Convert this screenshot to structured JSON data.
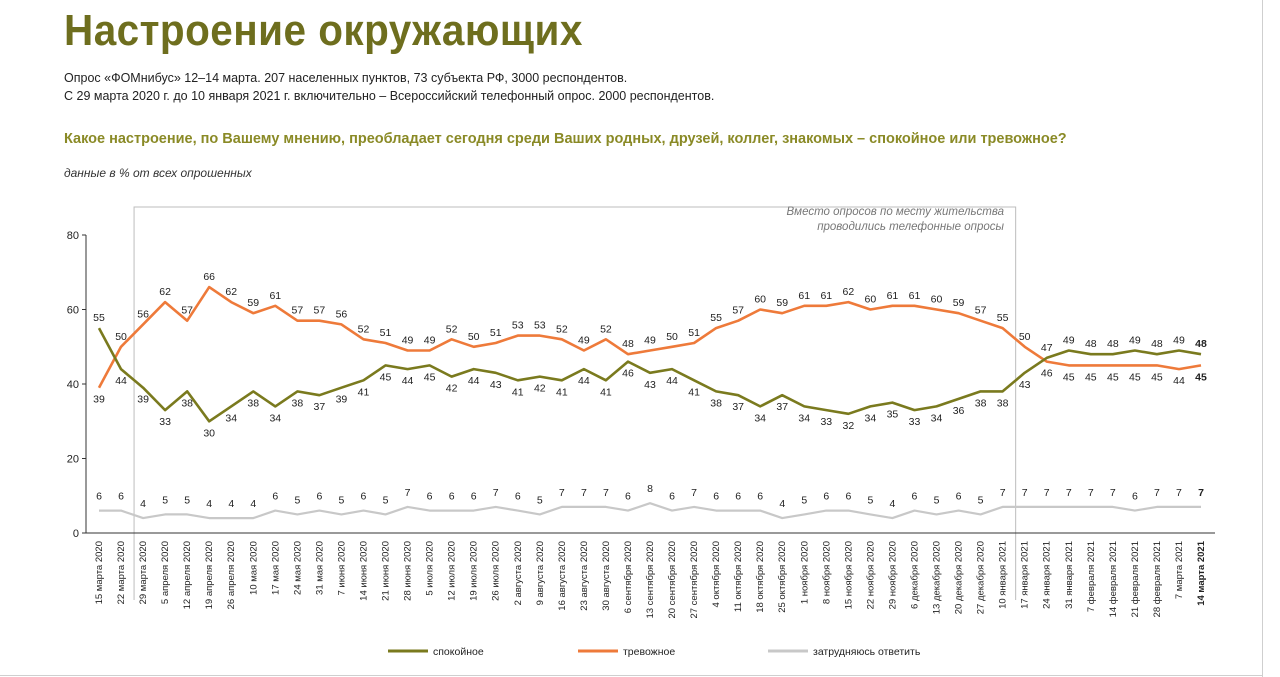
{
  "title": "Настроение окружающих",
  "subtitle_1": "Опрос «ФОМнибус» 12–14 марта. 207 населенных пунктов, 73 субъекта РФ, 3000 респондентов.",
  "subtitle_2": "С 29 марта 2020 г. до 10 января 2021 г. включительно – Всероссийский телефонный опрос. 2000 респондентов.",
  "question": "Какое настроение, по Вашему мнению, преобладает сегодня среди Ваших родных, друзей, коллег, знакомых – спокойное или тревожное?",
  "units": "данные в % от всех опрошенных",
  "note": [
    "Вместо опросов по месту жительства",
    "проводились телефонные опросы"
  ],
  "colors": {
    "calm": "#7a7a1e",
    "anxious": "#ee7a3a",
    "unsure": "#c8c8c8",
    "title": "#6e6e1e",
    "question": "#8a8a26"
  },
  "chart_data": {
    "type": "line",
    "title": "Настроение окружающих",
    "ylim": [
      0,
      80
    ],
    "yticks": [
      0,
      20,
      40,
      60,
      80
    ],
    "grid": false,
    "legend_position": "bottom",
    "phone_survey_range": [
      "29 марта 2020",
      "10 января 2021"
    ],
    "x": [
      "15 марта 2020",
      "22 марта 2020",
      "29 марта 2020",
      "5 апреля 2020",
      "12 апреля 2020",
      "19 апреля 2020",
      "26 апреля 2020",
      "10 мая 2020",
      "17 мая 2020",
      "24 мая 2020",
      "31 мая 2020",
      "7 июня 2020",
      "14 июня 2020",
      "21 июня 2020",
      "28 июня 2020",
      "5 июля 2020",
      "12 июля 2020",
      "19 июля 2020",
      "26 июля 2020",
      "2 августа 2020",
      "9 августа 2020",
      "16 августа 2020",
      "23 августа 2020",
      "30 августа 2020",
      "6 сентября 2020",
      "13 сентября 2020",
      "20 сентября 2020",
      "27 сентября 2020",
      "4 октября 2020",
      "11 октября 2020",
      "18 октября 2020",
      "25 октября 2020",
      "1 ноября 2020",
      "8 ноября 2020",
      "15 ноября 2020",
      "22 ноября 2020",
      "29 ноября 2020",
      "6 декабря 2020",
      "13 декабря 2020",
      "20 декабря 2020",
      "27 декабря 2020",
      "10 января 2021",
      "17 января 2021",
      "24 января 2021",
      "31 января 2021",
      "7 февраля 2021",
      "14 февраля 2021",
      "21 февраля 2021",
      "28 февраля 2021",
      "7 марта 2021",
      "14 марта 2021"
    ],
    "series": [
      {
        "name": "спокойное",
        "key": "calm",
        "values": [
          55,
          44,
          39,
          33,
          38,
          30,
          34,
          38,
          34,
          38,
          37,
          39,
          41,
          45,
          44,
          45,
          42,
          44,
          43,
          41,
          42,
          41,
          44,
          41,
          46,
          43,
          44,
          41,
          38,
          37,
          34,
          37,
          34,
          33,
          32,
          34,
          35,
          33,
          34,
          36,
          38,
          38,
          43,
          47,
          49,
          48,
          48,
          49,
          48,
          49,
          48
        ]
      },
      {
        "name": "тревожное",
        "key": "anxious",
        "values": [
          39,
          50,
          56,
          62,
          57,
          66,
          62,
          59,
          61,
          57,
          57,
          56,
          52,
          51,
          49,
          49,
          52,
          50,
          51,
          53,
          53,
          52,
          49,
          52,
          48,
          49,
          50,
          51,
          55,
          57,
          60,
          59,
          61,
          61,
          62,
          60,
          61,
          61,
          60,
          59,
          57,
          55,
          50,
          46,
          45,
          45,
          45,
          45,
          45,
          44,
          45
        ]
      },
      {
        "name": "затрудняюсь ответить",
        "key": "unsure",
        "values": [
          6,
          6,
          4,
          5,
          5,
          4,
          4,
          4,
          6,
          5,
          6,
          5,
          6,
          5,
          7,
          6,
          6,
          6,
          7,
          6,
          5,
          7,
          7,
          7,
          6,
          8,
          6,
          7,
          6,
          6,
          6,
          4,
          5,
          6,
          6,
          5,
          4,
          6,
          5,
          6,
          5,
          7,
          7,
          7,
          7,
          7,
          7,
          6,
          7,
          7,
          7
        ]
      }
    ]
  }
}
